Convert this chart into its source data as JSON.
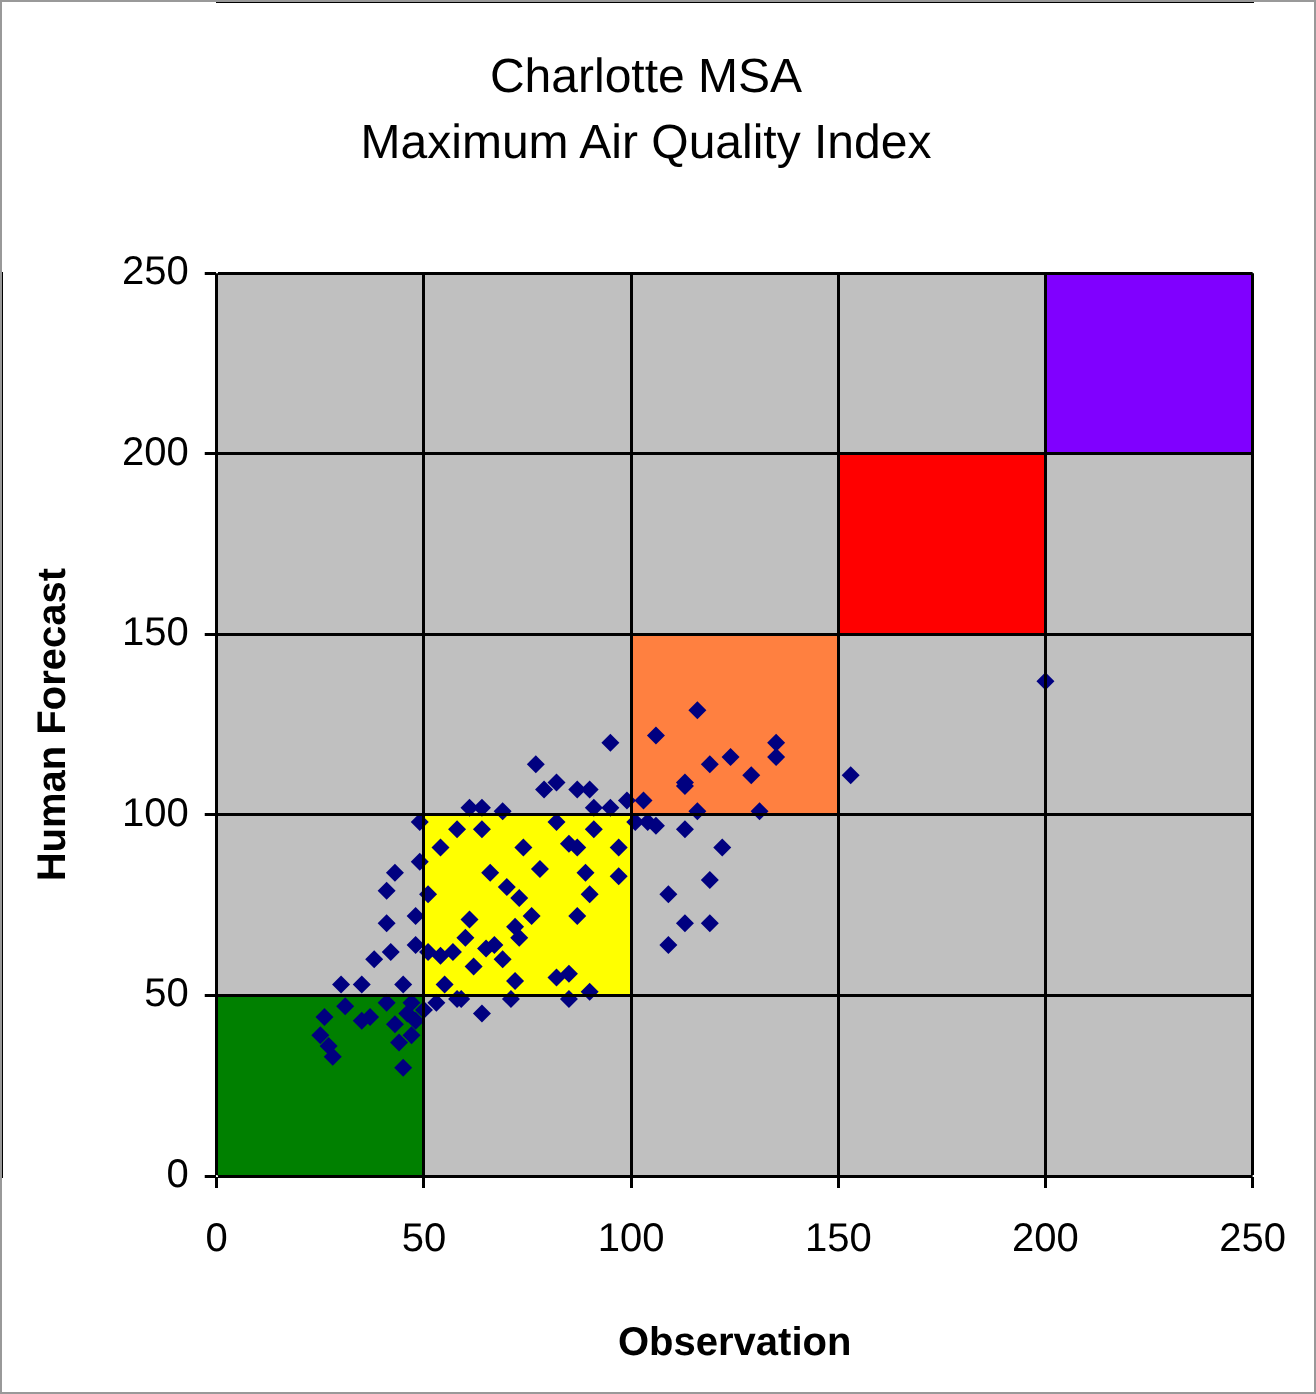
{
  "chart_data": {
    "type": "scatter",
    "title": "Charlotte MSA",
    "subtitle": "Maximum Air Quality Index",
    "xlabel": "Observation",
    "ylabel": "Human Forecast",
    "xlim": [
      0,
      250
    ],
    "xticks": [
      0,
      50,
      100,
      150,
      200,
      250
    ],
    "ylim": [
      0,
      250
    ],
    "yticks": [
      0,
      50,
      100,
      150,
      200,
      250
    ],
    "grid": true,
    "marker": "diamond",
    "series": [
      {
        "type": "bar",
        "x": [
          25,
          75,
          125,
          175,
          225
        ],
        "base": [
          0,
          50,
          100,
          150,
          200
        ],
        "values": [
          50,
          50,
          50,
          50,
          50
        ],
        "colors": [
          "#008000",
          "#ffff00",
          "#ff8040",
          "#ff0000",
          "#8000ff"
        ]
      },
      {
        "color": "#000080",
        "x": [
          200,
          153,
          116,
          106,
          95,
          124,
          119,
          135,
          135,
          129,
          113,
          113,
          116,
          131,
          104,
          113,
          122,
          119,
          109,
          113,
          119,
          109,
          77,
          79,
          82,
          87,
          90,
          91,
          95,
          99,
          103,
          101,
          106,
          61,
          64,
          69,
          49,
          54,
          58,
          64,
          74,
          78,
          82,
          85,
          87,
          91,
          97,
          97,
          89,
          90,
          87,
          66,
          70,
          73,
          76,
          72,
          73,
          69,
          71,
          65,
          61,
          60,
          57,
          55,
          59,
          64,
          82,
          85,
          85,
          90,
          72,
          51,
          49,
          43,
          41,
          41,
          48,
          42,
          48,
          51,
          54,
          38,
          35,
          30,
          31,
          35,
          37,
          26,
          25,
          28,
          27,
          45,
          44,
          43,
          47,
          50,
          48,
          46,
          45,
          41,
          53,
          58,
          62,
          67,
          47
        ],
        "values": [
          137,
          111,
          129,
          122,
          120,
          116,
          114,
          120,
          116,
          111,
          109,
          108,
          101,
          101,
          98,
          96,
          91,
          82,
          78,
          70,
          70,
          64,
          114,
          107,
          109,
          107,
          107,
          102,
          102,
          104,
          104,
          98,
          97,
          102,
          102,
          101,
          98,
          91,
          96,
          96,
          91,
          85,
          98,
          92,
          91,
          96,
          91,
          83,
          84,
          78,
          72,
          84,
          80,
          77,
          72,
          69,
          66,
          60,
          49,
          63,
          71,
          66,
          62,
          53,
          49,
          45,
          55,
          56,
          49,
          51,
          54,
          78,
          87,
          84,
          79,
          70,
          72,
          62,
          64,
          62,
          61,
          60,
          53,
          53,
          47,
          43,
          44,
          44,
          39,
          33,
          36,
          30,
          37,
          42,
          48,
          46,
          43,
          45,
          53,
          48,
          48,
          49,
          58,
          64,
          39
        ]
      }
    ]
  }
}
